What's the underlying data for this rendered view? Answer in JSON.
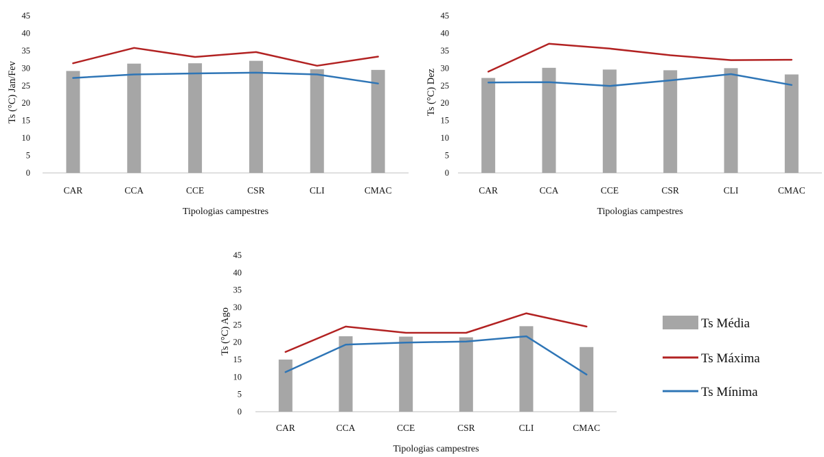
{
  "chart_data": [
    {
      "type": "bar",
      "categories": [
        "CAR",
        "CCA",
        "CCE",
        "CSR",
        "CLI",
        "CMAC"
      ],
      "ylabel": "Ts (°C)  Jan/Fev",
      "xlabel": "Tipologias campestres",
      "ylim": [
        0,
        45
      ],
      "yticks": [
        0,
        5,
        10,
        15,
        20,
        25,
        30,
        35,
        40,
        45
      ],
      "series": [
        {
          "name": "Ts Média",
          "kind": "bar",
          "values": [
            29.2,
            31.3,
            31.4,
            32.1,
            29.7,
            29.5
          ]
        },
        {
          "name": "Ts Máxima",
          "kind": "line",
          "values": [
            31.4,
            35.8,
            33.2,
            34.6,
            30.7,
            33.3
          ]
        },
        {
          "name": "Ts Mínima",
          "kind": "line",
          "values": [
            27.2,
            28.2,
            28.5,
            28.7,
            28.2,
            25.6
          ]
        }
      ]
    },
    {
      "type": "bar",
      "categories": [
        "CAR",
        "CCA",
        "CCE",
        "CSR",
        "CLI",
        "CMAC"
      ],
      "ylabel": "Ts (°C)  Dez",
      "xlabel": "Tipologias campestres",
      "ylim": [
        0,
        45
      ],
      "yticks": [
        0,
        5,
        10,
        15,
        20,
        25,
        30,
        35,
        40,
        45
      ],
      "series": [
        {
          "name": "Ts Média",
          "kind": "bar",
          "values": [
            27.2,
            30.1,
            29.6,
            29.4,
            30.0,
            28.2
          ]
        },
        {
          "name": "Ts Máxima",
          "kind": "line",
          "values": [
            29.0,
            37.0,
            35.6,
            33.7,
            32.3,
            32.4
          ]
        },
        {
          "name": "Ts Mínima",
          "kind": "line",
          "values": [
            25.9,
            26.0,
            24.9,
            26.5,
            28.3,
            25.2
          ]
        }
      ]
    },
    {
      "type": "bar",
      "categories": [
        "CAR",
        "CCA",
        "CCE",
        "CSR",
        "CLI",
        "CMAC"
      ],
      "ylabel": "Ts (°C)  Ago",
      "xlabel": "Tipologias campestres",
      "ylim": [
        0,
        45
      ],
      "yticks": [
        0,
        5,
        10,
        15,
        20,
        25,
        30,
        35,
        40,
        45
      ],
      "series": [
        {
          "name": "Ts Média",
          "kind": "bar",
          "values": [
            15.0,
            21.7,
            21.6,
            21.4,
            24.6,
            18.6
          ]
        },
        {
          "name": "Ts Máxima",
          "kind": "line",
          "values": [
            17.2,
            24.5,
            22.7,
            22.7,
            28.3,
            24.5
          ]
        },
        {
          "name": "Ts Mínima",
          "kind": "line",
          "values": [
            11.4,
            19.3,
            19.9,
            20.2,
            21.7,
            10.7
          ]
        }
      ]
    }
  ],
  "colors": {
    "bar": "#a6a6a6",
    "max_line": "#b22222",
    "min_line": "#2e75b6",
    "axis": "#bfbfbf"
  },
  "legend": {
    "placement": "right of bottom chart",
    "items": [
      {
        "label": "Ts Média",
        "symbol": "bar"
      },
      {
        "label": "Ts Máxima",
        "symbol": "line"
      },
      {
        "label": "Ts Mínima",
        "symbol": "line"
      }
    ]
  }
}
